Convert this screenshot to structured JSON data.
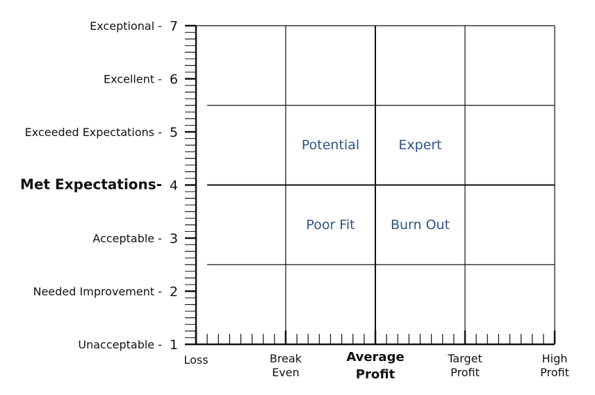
{
  "chart_data": {
    "type": "other",
    "y_axis": {
      "range": [
        1,
        7
      ],
      "ticks": [
        {
          "value": 7,
          "label": "Exceptional",
          "number": "7",
          "bold": false
        },
        {
          "value": 6,
          "label": "Excellent",
          "number": "6",
          "bold": false
        },
        {
          "value": 5,
          "label": "Exceeded Expectations",
          "number": "5",
          "bold": false
        },
        {
          "value": 4,
          "label": "Met Expectations-",
          "number": "4",
          "bold": true
        },
        {
          "value": 3,
          "label": "Acceptable",
          "number": "3",
          "bold": false
        },
        {
          "value": 2,
          "label": "Needed Improvement",
          "number": "2",
          "bold": false
        },
        {
          "value": 1,
          "label": "Unacceptable",
          "number": "1",
          "bold": false
        }
      ],
      "horizontal_gridlines": [
        7,
        5.5,
        4,
        2.5
      ],
      "bold_gridline": 4
    },
    "x_axis": {
      "range": [
        0,
        4
      ],
      "ticks": [
        {
          "value": 0,
          "lines": [
            "Loss"
          ],
          "bold": false
        },
        {
          "value": 1,
          "lines": [
            "Break",
            "Even"
          ],
          "bold": false
        },
        {
          "value": 2,
          "lines": [
            "Average",
            "Profit"
          ],
          "bold": true
        },
        {
          "value": 3,
          "lines": [
            "Target",
            "Profit"
          ],
          "bold": false
        },
        {
          "value": 4,
          "lines": [
            "High",
            "Profit"
          ],
          "bold": false
        }
      ],
      "vertical_gridlines": [
        1,
        2,
        3,
        4
      ],
      "bold_gridline": 2
    },
    "quadrants": [
      {
        "label": "Potential",
        "x": 1.5,
        "y": 4.75
      },
      {
        "label": "Expert",
        "x": 2.5,
        "y": 4.75
      },
      {
        "label": "Poor Fit",
        "x": 1.5,
        "y": 3.25
      },
      {
        "label": "Burn Out",
        "x": 2.5,
        "y": 3.25
      }
    ],
    "colors": {
      "grid": "#111111",
      "quadrant_text": "#2e5486"
    }
  }
}
